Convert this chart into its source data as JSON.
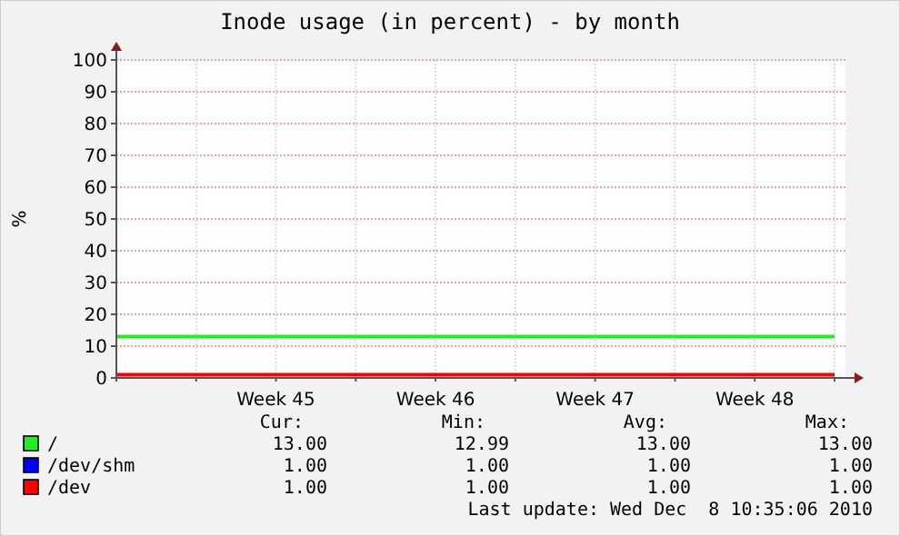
{
  "chart_data": {
    "type": "line",
    "title": "Inode usage (in percent) - by month",
    "ylabel": "%",
    "categories": [
      null,
      null,
      "Week 45",
      null,
      "Week 46",
      null,
      "Week 47",
      null,
      "Week 48",
      null
    ],
    "series": [
      {
        "name": "/",
        "color": "#22ee22",
        "values": [
          13,
          13,
          13,
          13,
          13,
          13,
          13,
          13,
          13,
          13
        ]
      },
      {
        "name": "/dev/shm",
        "color": "#0000ff",
        "values": [
          null,
          null,
          null,
          null,
          null,
          null,
          null,
          null,
          null,
          null
        ]
      },
      {
        "name": "/dev",
        "color": "#ff0000",
        "values": [
          1,
          1,
          1,
          1,
          1,
          1,
          1,
          1,
          1,
          1
        ]
      }
    ],
    "ylim": [
      0,
      100
    ],
    "yticks": [
      0,
      10,
      20,
      30,
      40,
      50,
      60,
      70,
      80,
      90,
      100
    ],
    "grid": true,
    "legend": "bottom",
    "marker": "none",
    "line_style": "solid",
    "annotations": [
      "Cur:",
      "Min:",
      "Avg:",
      "Max:",
      "13.00",
      "12.99",
      "13.00",
      "13.00",
      "1.00",
      "1.00",
      "1.00",
      "1.00",
      "1.00",
      "1.00",
      "1.00",
      "1.00",
      "Last update: Wed Dec  8 10:35:06 2010"
    ]
  }
}
